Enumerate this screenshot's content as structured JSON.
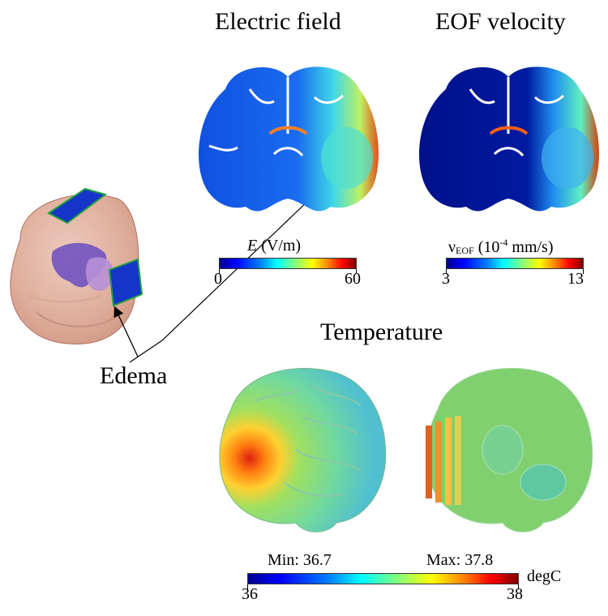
{
  "titles": {
    "electric_field": "Electric field",
    "eof_velocity": "EOF velocity",
    "temperature": "Temperature"
  },
  "edema_label": "Edema",
  "colorbars": {
    "electric": {
      "var": "E",
      "unit": " (V/m)",
      "min": "0",
      "max": "60"
    },
    "eof": {
      "symbol": "ν",
      "sub": "EOF",
      "pre": " (10",
      "exp": "-4",
      "unit": " mm/s)",
      "min": "3",
      "max": "13"
    },
    "temperature": {
      "min_label": "Min: 36.7",
      "max_label": "Max: 37.8",
      "min": "36",
      "max": "38",
      "unit": "degC"
    }
  },
  "colors": {
    "jet_low": "#00008f",
    "jet_high": "#800000",
    "electrode": "#1030c0",
    "skull": "#e8b8a8"
  }
}
